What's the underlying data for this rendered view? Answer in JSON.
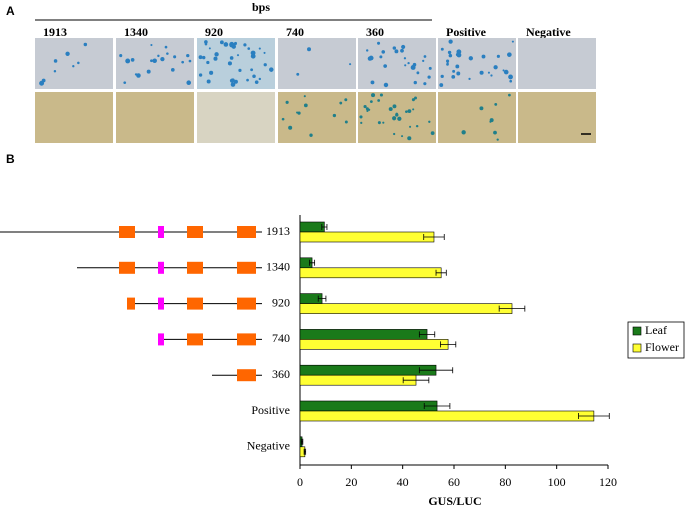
{
  "panel_a": {
    "label": "A",
    "header": "bps",
    "columns": [
      "1913",
      "1340",
      "920",
      "740",
      "360",
      "Positive",
      "Negative"
    ]
  },
  "chart_data": {
    "type": "hbar",
    "panel_label": "B",
    "x_label": "GUS/LUC",
    "categories": [
      "1913",
      "1340",
      "920",
      "740",
      "360",
      "Positive",
      "Negative"
    ],
    "series": [
      {
        "name": "Leaf",
        "color": "#1a7a1a",
        "values": [
          9.5,
          4.7,
          8.6,
          49.5,
          53,
          53.4,
          0.8
        ],
        "errors": [
          1,
          1,
          1.5,
          3,
          6.5,
          5,
          0.3
        ]
      },
      {
        "name": "Flower",
        "color": "#ffff33",
        "values": [
          52.2,
          55,
          82.6,
          57.7,
          45.2,
          114.5,
          1.9
        ],
        "errors": [
          4,
          2,
          5,
          3,
          5,
          6,
          0.3
        ]
      }
    ],
    "xlim": [
      0,
      120
    ],
    "xticks": [
      0,
      20,
      40,
      60,
      80,
      100,
      120
    ],
    "legend": "right"
  }
}
